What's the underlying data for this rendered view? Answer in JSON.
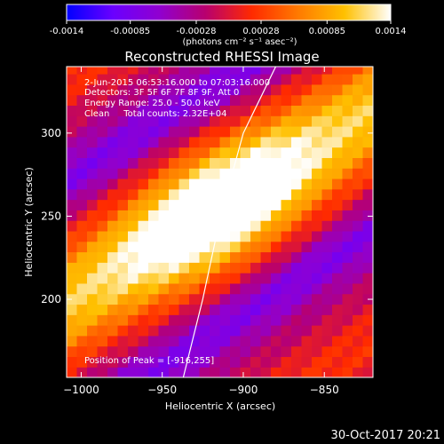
{
  "chart_data": {
    "type": "heatmap",
    "title": "Reconstructed RHESSI Image",
    "colorbar": {
      "min": -0.0014,
      "max": 0.0014,
      "ticks": [
        "-0.0014",
        "-0.00085",
        "-0.00028",
        "0.00028",
        "0.00085",
        "0.0014"
      ],
      "unit_label": "(photons cm⁻² s⁻¹ asec⁻²)",
      "colormap": [
        "#0000ff",
        "#6a00ff",
        "#9000d0",
        "#b8006e",
        "#ff2a00",
        "#ff7a00",
        "#ffc000",
        "#ffffff"
      ]
    },
    "info": {
      "time_range": "2-Jun-2015 06:53:16.000 to 07:03:16.000",
      "detectors": "Detectors: 3F 5F 6F 7F 8F 9F, Att 0",
      "energy": "Energy Range: 25.0 - 50.0 keV",
      "clean": "Clean     Total counts: 2.32E+04"
    },
    "peak_label": "Position of Peak = [-916,255]",
    "peak": [
      -916,
      255
    ],
    "xlabel": "Heliocentric X (arcsec)",
    "ylabel": "Heliocentric Y (arcsec)",
    "xlim": [
      -1009,
      -820
    ],
    "ylim": [
      153,
      340
    ],
    "xticks": [
      -1000,
      -950,
      -900,
      -850
    ],
    "yticks": [
      200,
      250,
      300
    ],
    "limb_curve": [
      [
        -937,
        153
      ],
      [
        -925,
        200
      ],
      [
        -914,
        250
      ],
      [
        -900,
        300
      ],
      [
        -880,
        340
      ]
    ],
    "ridges": [
      {
        "slope": 0.62,
        "intercept_at_peak": 0,
        "width": 34,
        "amplitude": 1.0,
        "offset": 0
      },
      {
        "offset": 118,
        "width": 26,
        "amplitude": 0.72
      },
      {
        "offset": -118,
        "width": 26,
        "amplitude": 0.7
      }
    ],
    "background_level": 0.38,
    "grid": false
  },
  "footer": {
    "timestamp": "30-Oct-2017 20:21"
  }
}
